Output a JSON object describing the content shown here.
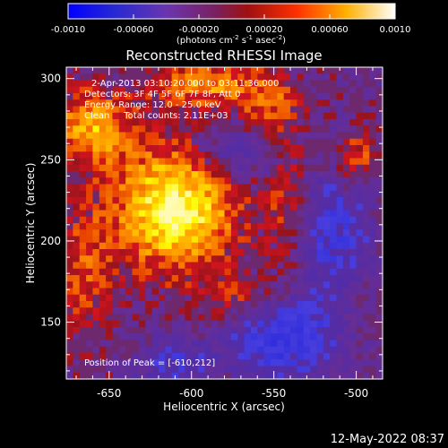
{
  "colorbar": {
    "ticks": [
      "-0.0010",
      "-0.00060",
      "-0.00020",
      "0.00020",
      "0.00060",
      "0.0010"
    ],
    "units_main": "(photons cm",
    "units_exp1": "-2",
    "units_mid": " s",
    "units_exp2": "-1",
    "units_tail": " asec",
    "units_exp3": "-2",
    "units_close": ")"
  },
  "title": "Reconstructed RHESSI Image",
  "info": {
    "time_range": "2-Apr-2013 03:10:20.000 to 03:11:36.000",
    "detectors": "Detectors: 3F 4F 5F 6F 7F 8F, Att 0",
    "energy": "Energy Range: 12.0 - 25.0 keV",
    "clean": "Clean     Total counts: 2.11E+03",
    "peak": "Position of Peak = [-610,212]"
  },
  "x_axis": {
    "label": "Heliocentric X (arcsec)",
    "ticks": [
      "-650",
      "-600",
      "-550",
      "-500"
    ],
    "tick_values": [
      -650,
      -600,
      -550,
      -500
    ],
    "range": [
      -676,
      -484
    ]
  },
  "y_axis": {
    "label": "Heliocentric Y (arcsec)",
    "ticks": [
      "150",
      "200",
      "250",
      "300"
    ],
    "tick_values": [
      150,
      200,
      250,
      300
    ],
    "range": [
      115,
      307
    ]
  },
  "footer": {
    "timestamp": "12-May-2022 08:37"
  },
  "colors": {
    "background": "#000000",
    "text": "#ffffff",
    "colormap": [
      "#0000ff",
      "#2020a0",
      "#5a2ea8",
      "#6a3090",
      "#8a2020",
      "#d01010",
      "#ff6000",
      "#ffc000",
      "#ffff80",
      "#ffffff"
    ]
  },
  "peak_position": [
    -610,
    212
  ],
  "sources": [
    {
      "x": -610,
      "y": 220,
      "amp": 1.0,
      "sx": 26,
      "sy": 26
    },
    {
      "x": -660,
      "y": 270,
      "amp": 0.65,
      "sx": 18,
      "sy": 16
    },
    {
      "x": -595,
      "y": 296,
      "amp": 0.55,
      "sx": 20,
      "sy": 10
    },
    {
      "x": -555,
      "y": 285,
      "amp": 0.45,
      "sx": 14,
      "sy": 14
    },
    {
      "x": -540,
      "y": 220,
      "amp": 0.35,
      "sx": 10,
      "sy": 30
    },
    {
      "x": -500,
      "y": 250,
      "amp": 0.45,
      "sx": 10,
      "sy": 12
    },
    {
      "x": -665,
      "y": 180,
      "amp": 0.35,
      "sx": 12,
      "sy": 30
    },
    {
      "x": -570,
      "y": 165,
      "amp": 0.3,
      "sx": 16,
      "sy": 12
    }
  ],
  "negative_regions": [
    {
      "x": -545,
      "y": 140,
      "amp": -0.7,
      "sx": 22,
      "sy": 18
    },
    {
      "x": -610,
      "y": 125,
      "amp": -0.45,
      "sx": 16,
      "sy": 10
    },
    {
      "x": -515,
      "y": 205,
      "amp": -0.55,
      "sx": 16,
      "sy": 28
    },
    {
      "x": -575,
      "y": 255,
      "amp": -0.4,
      "sx": 16,
      "sy": 14
    }
  ]
}
